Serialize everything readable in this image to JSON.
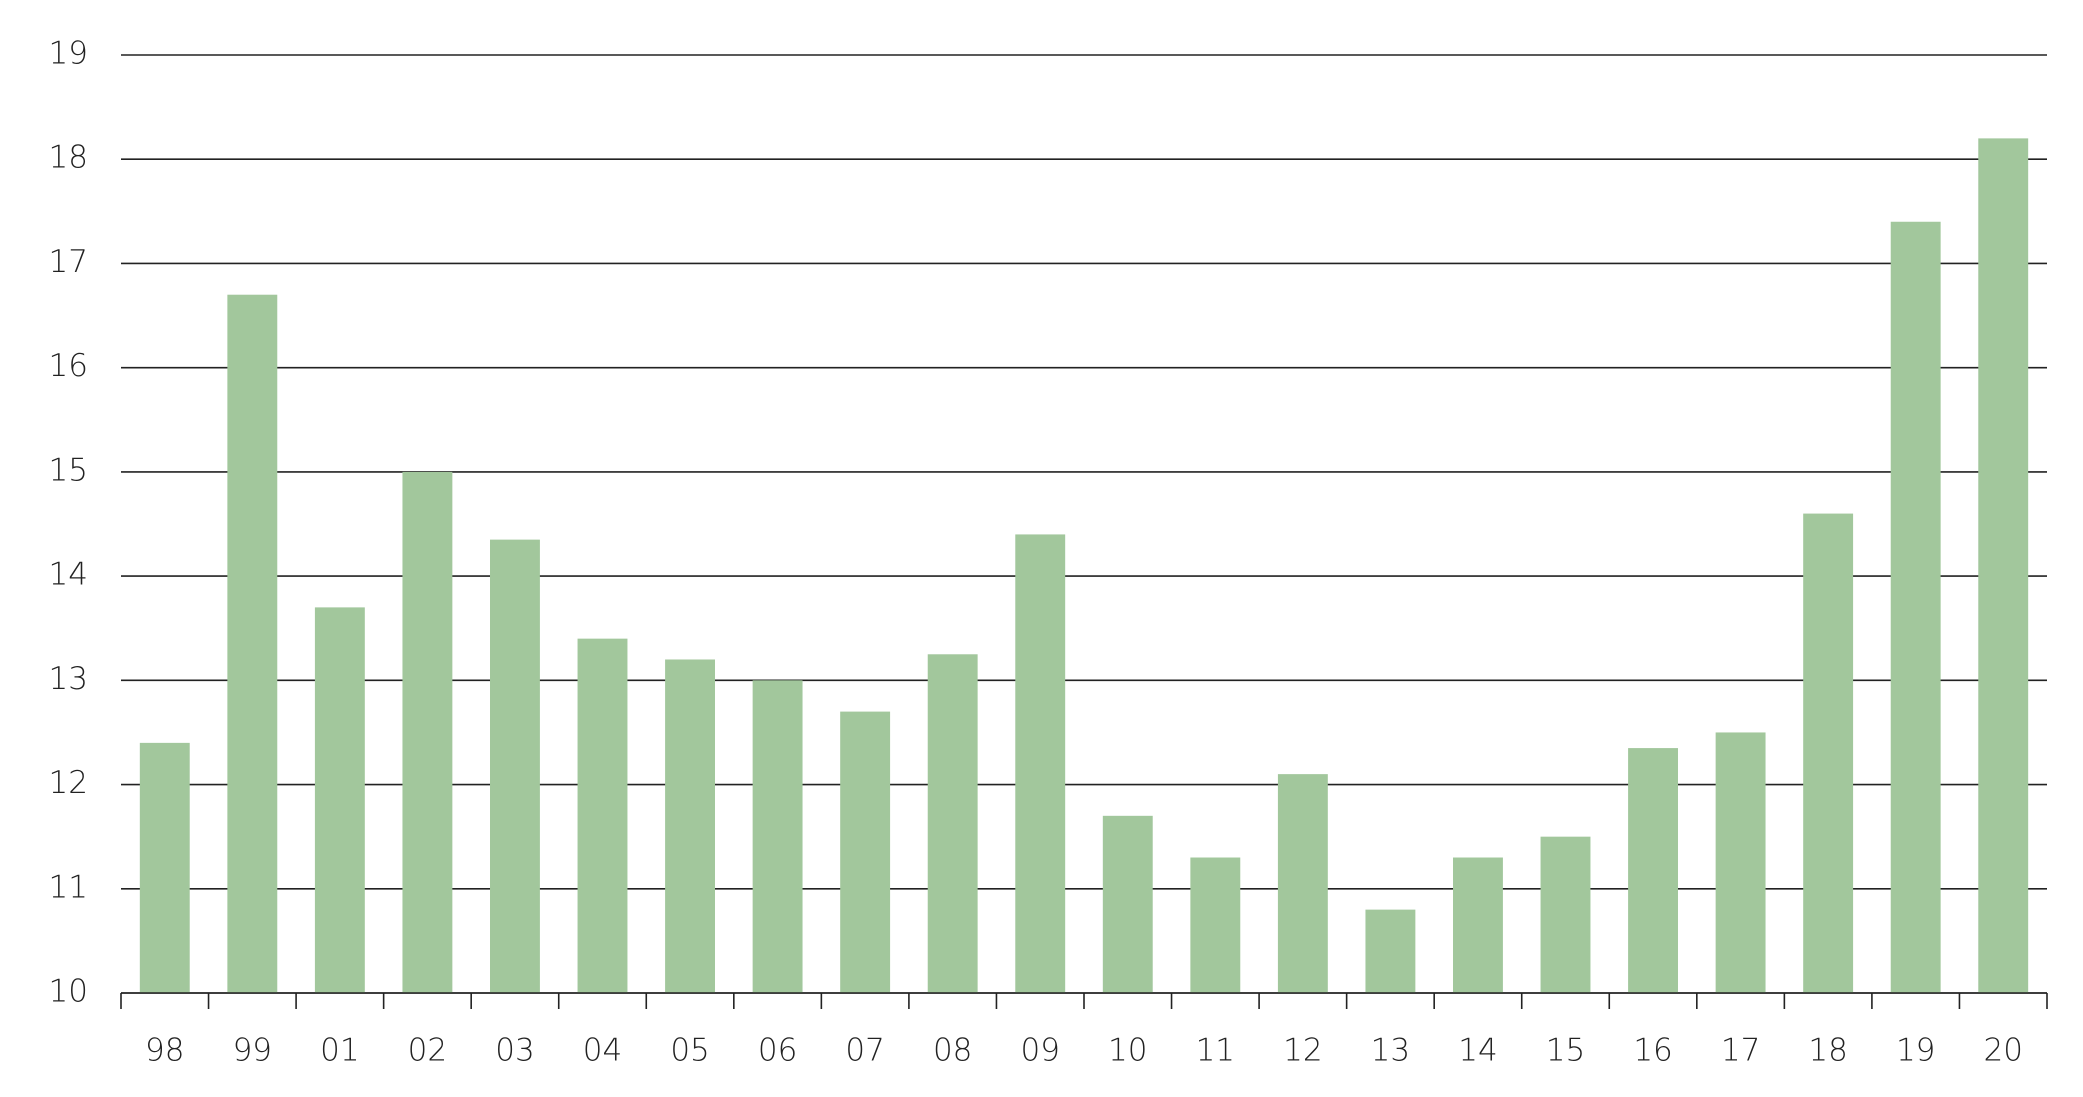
{
  "chart_data": {
    "type": "bar",
    "categories": [
      "98",
      "99",
      "01",
      "02",
      "03",
      "04",
      "05",
      "06",
      "07",
      "08",
      "09",
      "10",
      "11",
      "12",
      "13",
      "14",
      "15",
      "16",
      "17",
      "18",
      "19",
      "20"
    ],
    "values": [
      12.4,
      16.7,
      13.7,
      15.0,
      14.35,
      13.4,
      13.2,
      13.0,
      12.7,
      13.25,
      14.4,
      11.7,
      11.3,
      12.1,
      10.8,
      11.3,
      11.5,
      12.35,
      12.5,
      14.6,
      17.4,
      18.2
    ],
    "color": "#a2c79c",
    "ylim": [
      10,
      19
    ],
    "yticks": [
      10,
      11,
      12,
      13,
      14,
      15,
      16,
      17,
      18,
      19
    ],
    "grid": true
  }
}
